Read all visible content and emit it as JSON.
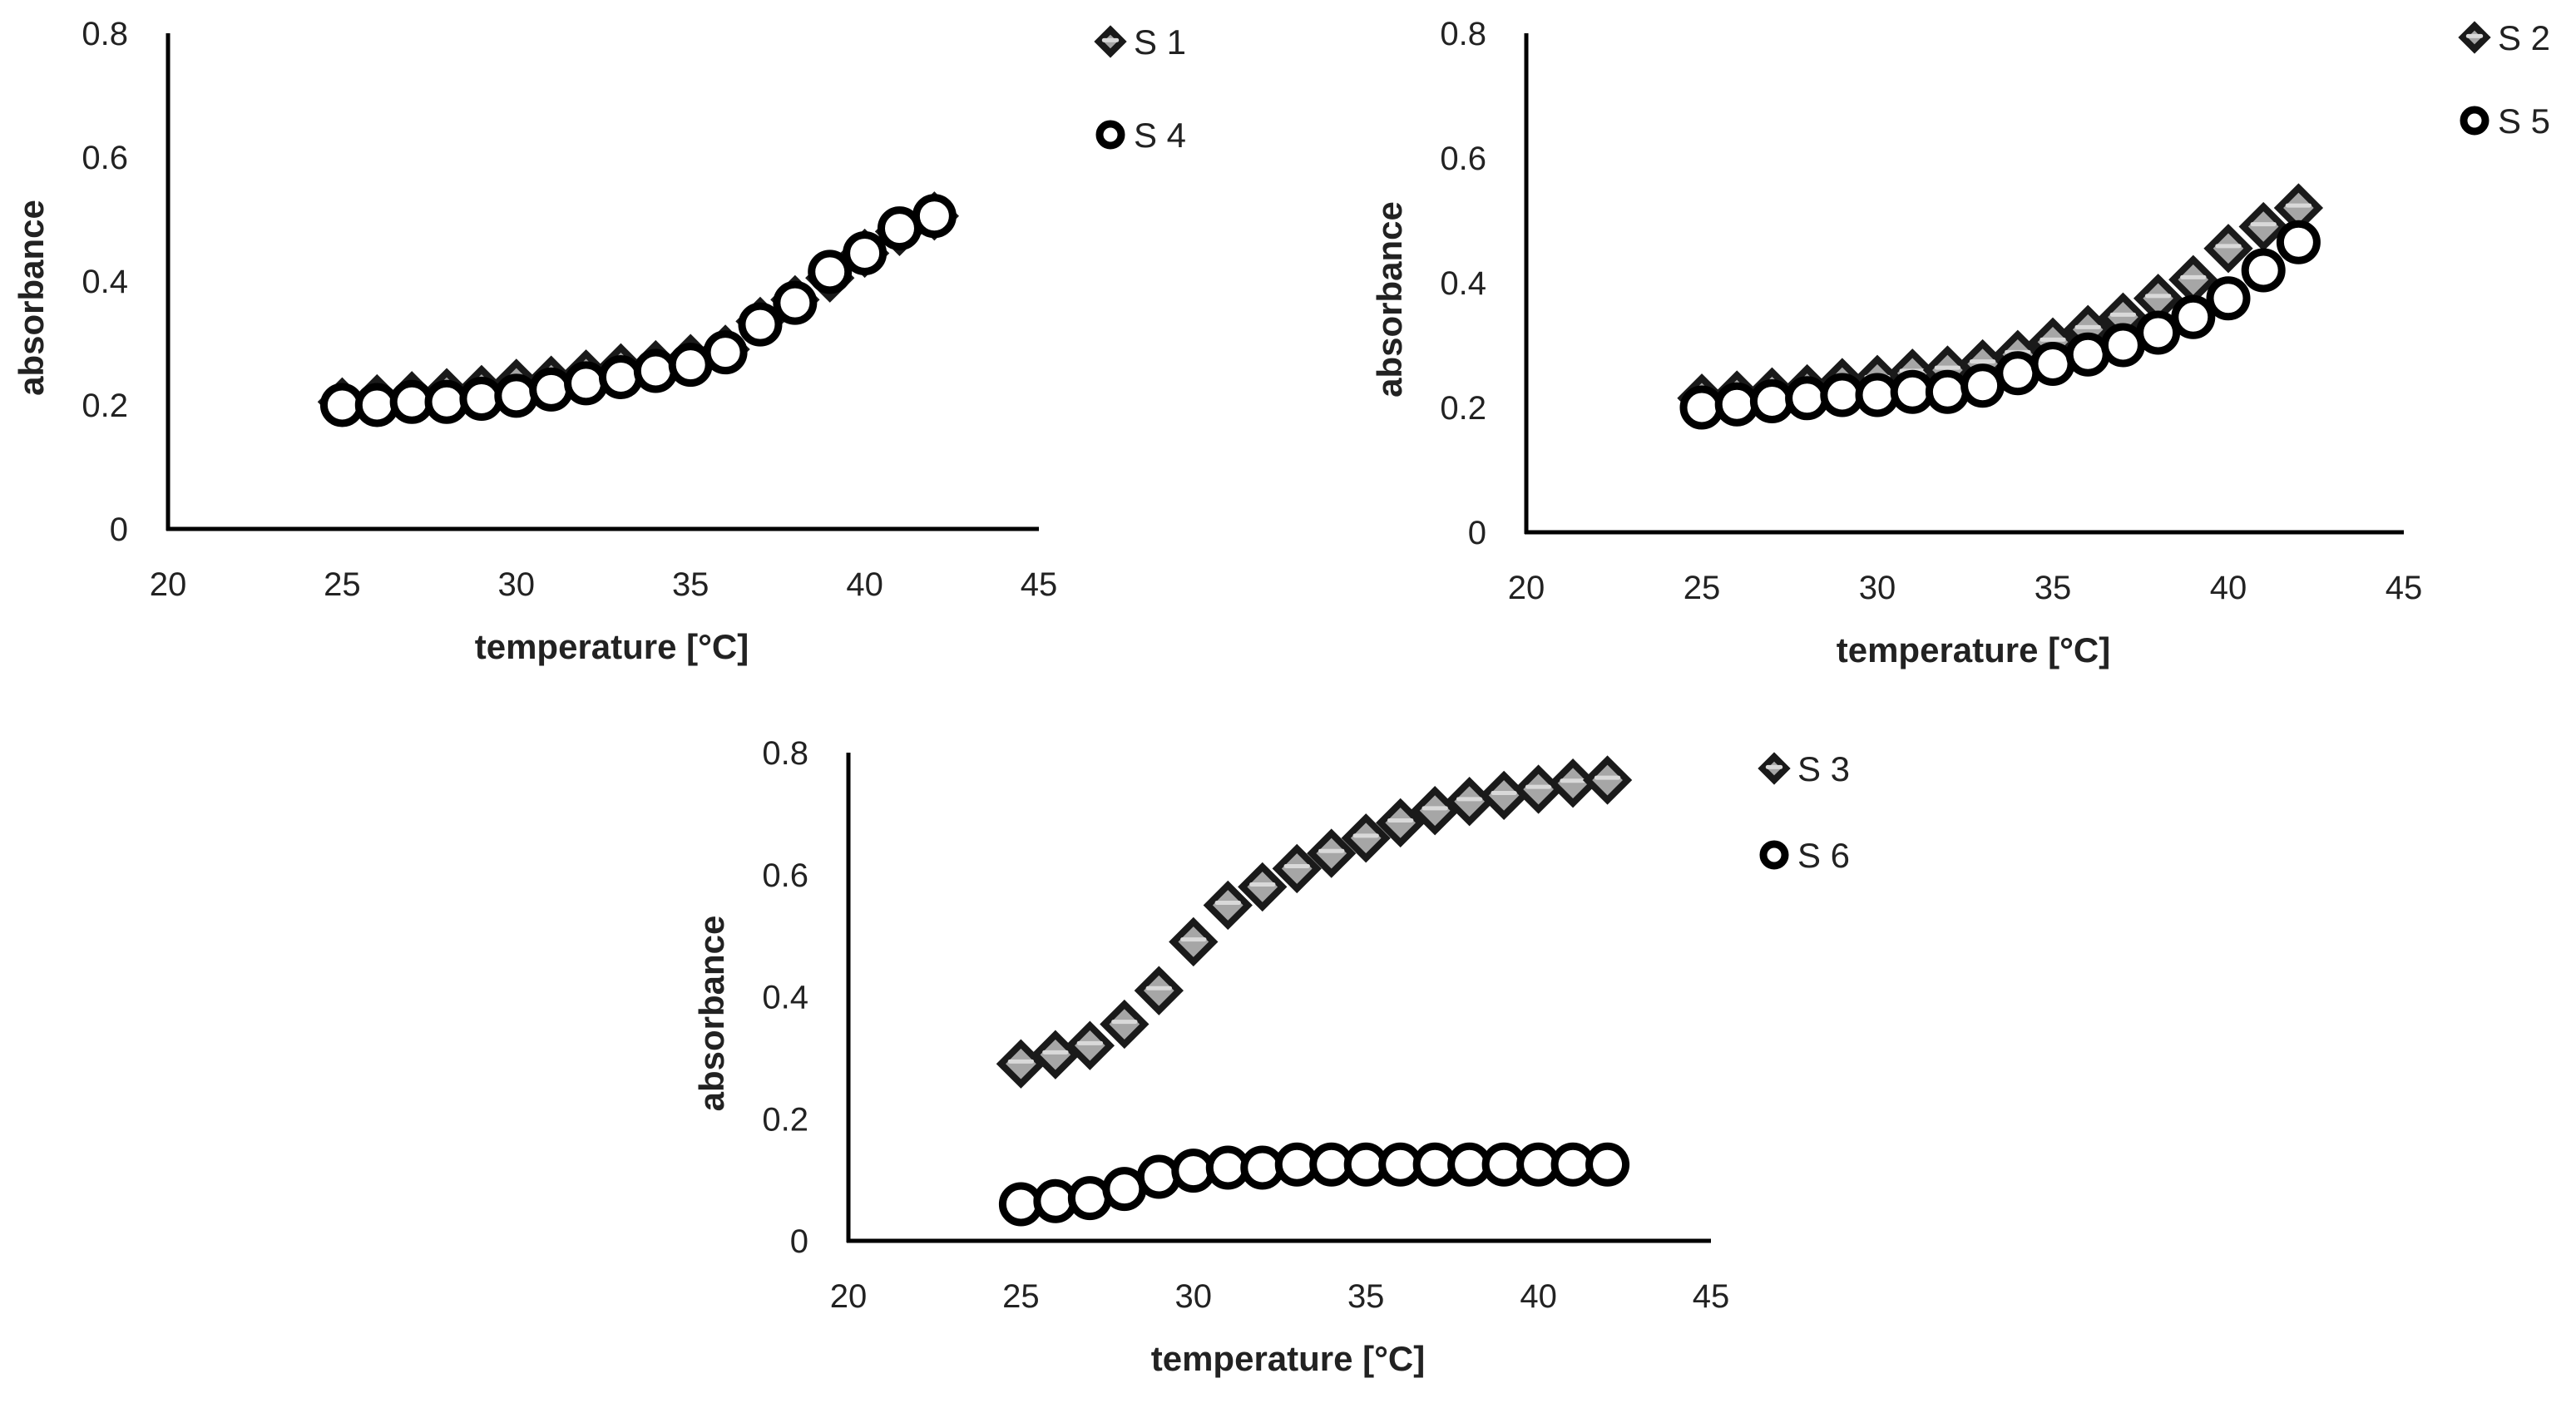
{
  "chart_data": [
    {
      "type": "scatter",
      "xlabel": "temperature [°C]",
      "ylabel": "absorbance",
      "xlim": [
        20,
        45
      ],
      "ylim": [
        0,
        0.8
      ],
      "xticks": [
        "20",
        "25",
        "30",
        "35",
        "40",
        "45"
      ],
      "yticks": [
        "0",
        "0.2",
        "0.4",
        "0.6",
        "0.8"
      ],
      "x": [
        25,
        26,
        27,
        28,
        29,
        30,
        31,
        32,
        33,
        34,
        35,
        36,
        37,
        38,
        39,
        40,
        41,
        42
      ],
      "series": [
        {
          "name": "S 1",
          "marker": "diamond",
          "values": [
            0.205,
            0.21,
            0.215,
            0.22,
            0.225,
            0.235,
            0.24,
            0.25,
            0.26,
            0.265,
            0.275,
            0.29,
            0.335,
            0.37,
            0.405,
            0.445,
            0.48,
            0.505
          ]
        },
        {
          "name": "S 4",
          "marker": "circle",
          "values": [
            0.2,
            0.2,
            0.205,
            0.205,
            0.21,
            0.215,
            0.225,
            0.235,
            0.245,
            0.255,
            0.265,
            0.285,
            0.33,
            0.365,
            0.415,
            0.445,
            0.485,
            0.505
          ]
        }
      ]
    },
    {
      "type": "scatter",
      "xlabel": "temperature [°C]",
      "ylabel": "absorbance",
      "xlim": [
        20,
        45
      ],
      "ylim": [
        0,
        0.8
      ],
      "xticks": [
        "20",
        "25",
        "30",
        "35",
        "40",
        "45"
      ],
      "yticks": [
        "0",
        "0.2",
        "0.4",
        "0.6",
        "0.8"
      ],
      "x": [
        25,
        26,
        27,
        28,
        29,
        30,
        31,
        32,
        33,
        34,
        35,
        36,
        37,
        38,
        39,
        40,
        41,
        42
      ],
      "series": [
        {
          "name": "S 2",
          "marker": "diamond",
          "values": [
            0.215,
            0.22,
            0.225,
            0.23,
            0.24,
            0.245,
            0.255,
            0.26,
            0.27,
            0.285,
            0.305,
            0.325,
            0.345,
            0.375,
            0.405,
            0.455,
            0.49,
            0.52
          ]
        },
        {
          "name": "S 5",
          "marker": "circle",
          "values": [
            0.2,
            0.205,
            0.21,
            0.215,
            0.22,
            0.22,
            0.225,
            0.225,
            0.235,
            0.255,
            0.27,
            0.285,
            0.3,
            0.32,
            0.345,
            0.375,
            0.42,
            0.465
          ]
        }
      ]
    },
    {
      "type": "scatter",
      "xlabel": "temperature [°C]",
      "ylabel": "absorbance",
      "xlim": [
        20,
        45
      ],
      "ylim": [
        0,
        0.8
      ],
      "xticks": [
        "20",
        "25",
        "30",
        "35",
        "40",
        "45"
      ],
      "yticks": [
        "0",
        "0.2",
        "0.4",
        "0.6",
        "0.8"
      ],
      "x": [
        25,
        26,
        27,
        28,
        29,
        30,
        31,
        32,
        33,
        34,
        35,
        36,
        37,
        38,
        39,
        40,
        41,
        42
      ],
      "series": [
        {
          "name": "S 3",
          "marker": "diamond",
          "values": [
            0.29,
            0.305,
            0.32,
            0.355,
            0.41,
            0.49,
            0.55,
            0.58,
            0.61,
            0.635,
            0.66,
            0.685,
            0.705,
            0.72,
            0.73,
            0.74,
            0.75,
            0.755
          ]
        },
        {
          "name": "S 6",
          "marker": "circle",
          "values": [
            0.06,
            0.065,
            0.07,
            0.085,
            0.105,
            0.115,
            0.12,
            0.12,
            0.125,
            0.125,
            0.125,
            0.125,
            0.125,
            0.125,
            0.125,
            0.125,
            0.125,
            0.125
          ]
        }
      ]
    }
  ],
  "colors": {
    "axis": "#000000",
    "diamond_fill": "#a6a6a6",
    "diamond_stroke": "#1a1a1a",
    "circle_fill": "#ffffff",
    "circle_stroke": "#000000",
    "text": "#222222"
  }
}
